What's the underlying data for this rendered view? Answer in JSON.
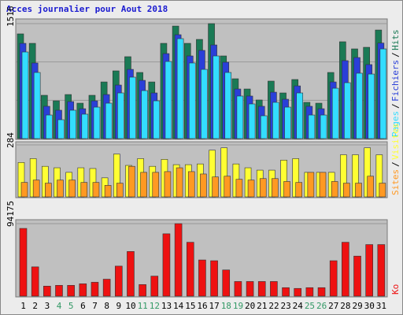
{
  "chart_data": {
    "type": "multi-bar",
    "title": "Acces journalier pour Aout 2018",
    "categories": [
      "1",
      "2",
      "3",
      "4",
      "5",
      "6",
      "7",
      "8",
      "9",
      "10",
      "11",
      "12",
      "13",
      "14",
      "15",
      "16",
      "17",
      "18",
      "19",
      "20",
      "21",
      "22",
      "23",
      "24",
      "25",
      "26",
      "27",
      "28",
      "29",
      "30",
      "31"
    ],
    "weekend": [
      false,
      false,
      false,
      true,
      true,
      false,
      false,
      false,
      false,
      false,
      true,
      true,
      false,
      false,
      false,
      false,
      false,
      true,
      true,
      false,
      false,
      false,
      false,
      false,
      true,
      true,
      false,
      false,
      false,
      false,
      false
    ],
    "weekday_color": "#000000",
    "weekend_color": "#339966",
    "panels": [
      {
        "ylim": [
          0,
          1516
        ],
        "yticks": [
          1516
        ],
        "series": [
          {
            "name": "Hits",
            "color": "#1a7a55",
            "values": [
              1381,
              1256,
              571,
              498,
              581,
              467,
              571,
              747,
              893,
              1080,
              872,
              747,
              1256,
              1484,
              1256,
              1308,
              1516,
              1090,
              789,
              654,
              509,
              758,
              602,
              779,
              478,
              467,
              872,
              1277,
              1183,
              1204,
              1432
            ]
          },
          {
            "name": "Fichiers",
            "color": "#2a3fd8",
            "values": [
              1256,
              997,
              426,
              374,
              488,
              394,
              498,
              581,
              706,
              913,
              768,
              602,
              1121,
              1370,
              1090,
              1163,
              1235,
              1007,
              654,
              561,
              426,
              612,
              519,
              695,
              426,
              394,
              747,
              1028,
              1069,
              976,
              1260
            ]
          },
          {
            "name": "Pages",
            "color": "#33ddff",
            "values": [
              1142,
              872,
              311,
              249,
              374,
              322,
              415,
              467,
              602,
              810,
              633,
              498,
              1017,
              1318,
              997,
              913,
              1090,
              872,
              561,
              457,
              301,
              478,
              415,
              602,
              311,
              311,
              664,
              737,
              862,
              851,
              1183
            ]
          }
        ]
      },
      {
        "ylim": [
          0,
          284
        ],
        "yticks": [
          284
        ],
        "series": [
          {
            "name": "Visites",
            "color": "#ffff33",
            "values": [
              188,
              209,
              167,
              159,
              134,
              159,
              155,
              104,
              234,
              172,
              209,
              167,
              205,
              176,
              176,
              180,
              255,
              268,
              180,
              159,
              146,
              146,
              201,
              209,
              134,
              134,
              134,
              230,
              230,
              268,
              230
            ]
          },
          {
            "name": "Sites",
            "color": "#ff9922",
            "values": [
              79,
              92,
              75,
              92,
              92,
              79,
              79,
              63,
              75,
              167,
              134,
              134,
              138,
              159,
              138,
              125,
              109,
              113,
              96,
              92,
              100,
              100,
              84,
              79,
              134,
              134,
              84,
              75,
              75,
              113,
              75
            ]
          }
        ]
      },
      {
        "ylim": [
          0,
          94175
        ],
        "yticks": [
          94175
        ],
        "series": [
          {
            "name": "Ko",
            "color": "#ee1111",
            "values": [
              88000,
              38000,
              13000,
              14000,
              14000,
              16000,
              18000,
              22000,
              39000,
              58000,
              15000,
              26000,
              81000,
              94175,
              70000,
              47000,
              46000,
              34000,
              19000,
              19000,
              19000,
              19000,
              11000,
              10000,
              11000,
              11000,
              46000,
              70000,
              52000,
              67000,
              67000
            ]
          }
        ]
      }
    ]
  }
}
